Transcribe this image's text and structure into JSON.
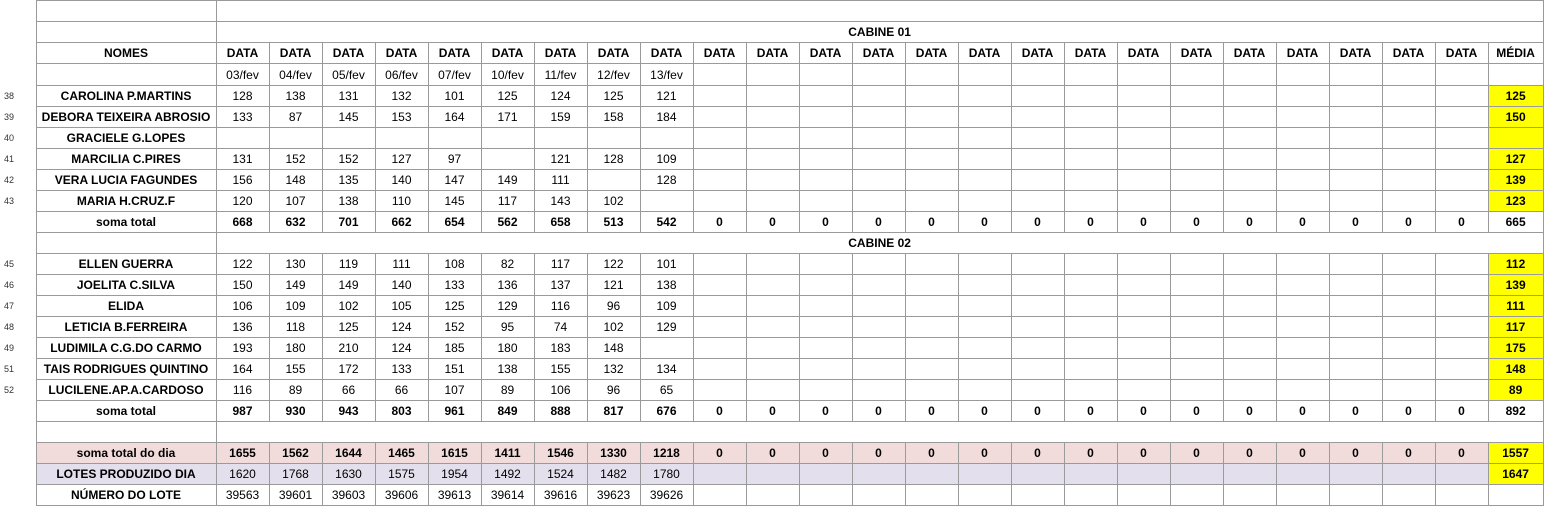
{
  "header": {
    "cabine1_title": "CABINE 01",
    "cabine2_title": "CABINE 02",
    "names_label": "NOMES",
    "date_label": "DATA",
    "average_label": "MÉDIA",
    "dates": [
      "03/fev",
      "04/fev",
      "05/fev",
      "06/fev",
      "07/fev",
      "10/fev",
      "11/fev",
      "12/fev",
      "13/fev"
    ]
  },
  "cabine1": {
    "rows": [
      {
        "num": "38",
        "name": "CAROLINA P.MARTINS",
        "values": [
          "128",
          "138",
          "131",
          "132",
          "101",
          "125",
          "124",
          "125",
          "121"
        ],
        "avg": "125"
      },
      {
        "num": "39",
        "name": "DEBORA TEIXEIRA ABROSIO",
        "values": [
          "133",
          "87",
          "145",
          "153",
          "164",
          "171",
          "159",
          "158",
          "184"
        ],
        "avg": "150"
      },
      {
        "num": "40",
        "name": "GRACIELE G.LOPES",
        "values": [
          "",
          "",
          "",
          "",
          "",
          "",
          "",
          "",
          ""
        ],
        "avg": ""
      },
      {
        "num": "41",
        "name": "MARCILIA C.PIRES",
        "values": [
          "131",
          "152",
          "152",
          "127",
          "97",
          "",
          "121",
          "128",
          "109"
        ],
        "avg": "127"
      },
      {
        "num": "42",
        "name": "VERA LUCIA FAGUNDES",
        "values": [
          "156",
          "148",
          "135",
          "140",
          "147",
          "149",
          "111",
          "",
          "128"
        ],
        "avg": "139"
      },
      {
        "num": "43",
        "name": "MARIA H.CRUZ.F",
        "values": [
          "120",
          "107",
          "138",
          "110",
          "145",
          "117",
          "143",
          "102",
          ""
        ],
        "avg": "123"
      }
    ],
    "sum_label": "soma total",
    "sums": [
      "668",
      "632",
      "701",
      "662",
      "654",
      "562",
      "658",
      "513",
      "542"
    ],
    "sum_avg": "665"
  },
  "cabine2": {
    "rows": [
      {
        "num": "45",
        "name": "ELLEN GUERRA",
        "values": [
          "122",
          "130",
          "119",
          "111",
          "108",
          "82",
          "117",
          "122",
          "101"
        ],
        "avg": "112"
      },
      {
        "num": "46",
        "name": "JOELITA C.SILVA",
        "values": [
          "150",
          "149",
          "149",
          "140",
          "133",
          "136",
          "137",
          "121",
          "138"
        ],
        "avg": "139"
      },
      {
        "num": "47",
        "name": "ELIDA",
        "values": [
          "106",
          "109",
          "102",
          "105",
          "125",
          "129",
          "116",
          "96",
          "109"
        ],
        "avg": "111"
      },
      {
        "num": "48",
        "name": "LETICIA B.FERREIRA",
        "values": [
          "136",
          "118",
          "125",
          "124",
          "152",
          "95",
          "74",
          "102",
          "129"
        ],
        "avg": "117"
      },
      {
        "num": "49",
        "name": "LUDIMILA C.G.DO CARMO",
        "values": [
          "193",
          "180",
          "210",
          "124",
          "185",
          "180",
          "183",
          "148",
          ""
        ],
        "avg": "175"
      },
      {
        "num": "51",
        "name": "TAIS RODRIGUES QUINTINO",
        "values": [
          "164",
          "155",
          "172",
          "133",
          "151",
          "138",
          "155",
          "132",
          "134"
        ],
        "avg": "148"
      },
      {
        "num": "52",
        "name": "LUCILENE.AP.A.CARDOSO",
        "values": [
          "116",
          "89",
          "66",
          "66",
          "107",
          "89",
          "106",
          "96",
          "65"
        ],
        "avg": "89"
      }
    ],
    "sum_label": "soma total",
    "sums": [
      "987",
      "930",
      "943",
      "803",
      "961",
      "849",
      "888",
      "817",
      "676"
    ],
    "sum_avg": "892"
  },
  "totals": {
    "day_label": "soma total  do dia",
    "day_values": [
      "1655",
      "1562",
      "1644",
      "1465",
      "1615",
      "1411",
      "1546",
      "1330",
      "1218"
    ],
    "day_avg": "1557",
    "lots_label": "LOTES PRODUZIDO DIA",
    "lots_values": [
      "1620",
      "1768",
      "1630",
      "1575",
      "1954",
      "1492",
      "1524",
      "1482",
      "1780"
    ],
    "lots_avg": "1647",
    "lotnum_label": "NÚMERO DO LOTE",
    "lotnum_values": [
      "39563",
      "39601",
      "39603",
      "39606",
      "39613",
      "39614",
      "39616",
      "39623",
      "39626"
    ]
  },
  "zero_value": "0",
  "colors": {
    "sum_text": "#e26b0a",
    "average_fill": "#ffff00",
    "average_sum_fill": "#ffc000",
    "day_row_fill": "#f2dcdb",
    "lots_row_fill": "#e4dfec"
  }
}
